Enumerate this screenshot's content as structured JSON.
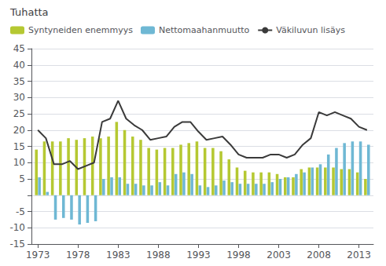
{
  "chart_data": {
    "type": "bar",
    "title": "Tuhatta",
    "x": [
      1973,
      1974,
      1975,
      1976,
      1977,
      1978,
      1979,
      1980,
      1981,
      1982,
      1983,
      1984,
      1985,
      1986,
      1987,
      1988,
      1989,
      1990,
      1991,
      1992,
      1993,
      1994,
      1995,
      1996,
      1997,
      1998,
      1999,
      2000,
      2001,
      2002,
      2003,
      2004,
      2005,
      2006,
      2007,
      2008,
      2009,
      2010,
      2011,
      2012,
      2013,
      2014
    ],
    "series": [
      {
        "name": "Syntyneiden enemmyys",
        "type": "bar",
        "color": "#b5c832",
        "values": [
          14.0,
          16.5,
          16.5,
          16.5,
          17.5,
          17.0,
          17.5,
          18.0,
          17.5,
          18.0,
          22.5,
          20.0,
          18.0,
          17.0,
          14.5,
          14.0,
          14.5,
          14.5,
          15.5,
          16.0,
          16.5,
          14.5,
          14.5,
          13.5,
          11.0,
          8.5,
          7.5,
          7.0,
          7.0,
          7.0,
          6.5,
          5.5,
          5.5,
          8.0,
          8.5,
          8.5,
          8.5,
          8.5,
          8.0,
          8.0,
          7.0,
          5.0
        ]
      },
      {
        "name": "Nettomaahanmuutto",
        "type": "bar",
        "color": "#6fb8d4",
        "values": [
          5.5,
          1.0,
          -7.5,
          -7.0,
          -7.5,
          -9.0,
          -8.5,
          -8.0,
          5.0,
          5.5,
          5.5,
          3.5,
          3.5,
          3.0,
          3.0,
          4.0,
          3.0,
          6.5,
          7.0,
          6.5,
          3.0,
          2.5,
          3.0,
          4.5,
          4.0,
          3.5,
          3.5,
          3.5,
          3.5,
          4.0,
          5.0,
          5.5,
          6.5,
          7.0,
          8.5,
          9.5,
          12.5,
          14.5,
          16.0,
          16.5,
          16.5,
          15.5
        ]
      },
      {
        "name": "Väkiluvun lisäys",
        "type": "line",
        "color": "#3a3a3a",
        "values": [
          20.0,
          17.5,
          9.5,
          9.5,
          10.5,
          8.0,
          9.0,
          10.0,
          22.5,
          23.5,
          29.0,
          23.5,
          21.5,
          20.0,
          17.0,
          17.5,
          18.0,
          21.0,
          22.5,
          22.5,
          19.5,
          17.0,
          17.5,
          18.0,
          15.5,
          12.5,
          11.5,
          11.5,
          11.5,
          12.5,
          12.5,
          11.5,
          12.5,
          15.5,
          17.5,
          25.5,
          24.5,
          25.5,
          24.5,
          23.5,
          21.0,
          20.0
        ]
      }
    ],
    "xlim": [
      1972.2,
      2014.8
    ],
    "xticks": [
      1973,
      1978,
      1983,
      1988,
      1993,
      1998,
      2003,
      2008,
      2013
    ],
    "ylim": [
      -15,
      45
    ],
    "yticks": [
      -15,
      -10,
      -5,
      {
        "value": 0,
        "label": ""
      },
      5,
      10,
      15,
      20,
      25,
      30,
      35,
      40,
      45
    ],
    "grid": true,
    "legend": "upper left"
  }
}
